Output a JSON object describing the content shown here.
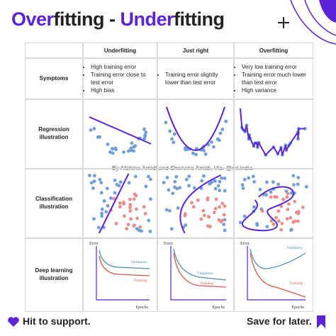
{
  "header": {
    "title": [
      "Over",
      "fitting - ",
      "Under",
      "fitting"
    ]
  },
  "table": {
    "columns": [
      "Underfitting",
      "Just right",
      "Overfitting"
    ],
    "rows": [
      {
        "label": "Symptoms",
        "cells": [
          [
            "High training error",
            "Training error close to test error",
            "High bias"
          ],
          [
            "Training error slightly lower than test error"
          ],
          [
            "Very low training error",
            "Training error much lower than test error",
            "High variance"
          ]
        ]
      },
      {
        "label": "Regression illustration"
      },
      {
        "label": "Classification illustration"
      },
      {
        "label": "Deep learning illustration"
      }
    ]
  },
  "watermark": "By Afshine Amidi and Shervine Amidi, Via: @ml.india",
  "plot_labels": {
    "y_axis": "Error",
    "x_axis": "Epochs",
    "validation": "Validation",
    "training": "Training"
  },
  "footer": {
    "left": "Hit to support.",
    "right": "Save for later."
  }
}
